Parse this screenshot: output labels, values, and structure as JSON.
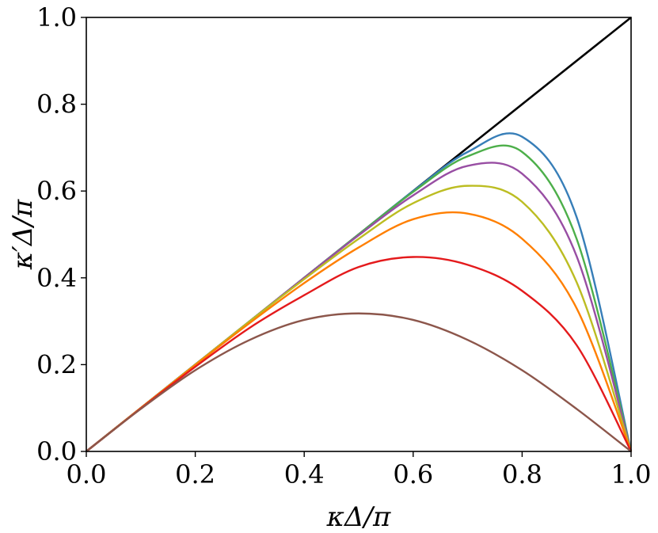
{
  "chart_data": {
    "type": "line",
    "xlabel": "κΔ/π",
    "ylabel": "κ′Δ/π",
    "xlim": [
      0,
      1
    ],
    "ylim": [
      0,
      1
    ],
    "x_ticks": [
      "0.0",
      "0.2",
      "0.4",
      "0.6",
      "0.8",
      "1.0"
    ],
    "y_ticks": [
      "0.0",
      "0.2",
      "0.4",
      "0.6",
      "0.8",
      "1.0"
    ],
    "grid": false,
    "legend": "none",
    "x": [
      0.0,
      0.1,
      0.2,
      0.3,
      0.4,
      0.5,
      0.6,
      0.7,
      0.8,
      0.9,
      1.0
    ],
    "series": [
      {
        "color": "#000000",
        "values": [
          0.0,
          0.1,
          0.2,
          0.3,
          0.4,
          0.5,
          0.6,
          0.7,
          0.8,
          0.9,
          1.0
        ]
      },
      {
        "color": "#377eb8",
        "values": [
          0.0,
          0.1,
          0.2,
          0.3,
          0.4,
          0.5,
          0.6,
          0.69,
          0.725,
          0.54,
          0.0
        ]
      },
      {
        "color": "#4daf4a",
        "values": [
          0.0,
          0.1,
          0.2,
          0.3,
          0.4,
          0.5,
          0.598,
          0.68,
          0.69,
          0.49,
          0.0
        ]
      },
      {
        "color": "#984ea3",
        "values": [
          0.0,
          0.1,
          0.2,
          0.3,
          0.4,
          0.498,
          0.59,
          0.658,
          0.64,
          0.45,
          0.0
        ]
      },
      {
        "color": "#bcbd22",
        "values": [
          0.0,
          0.1,
          0.2,
          0.3,
          0.397,
          0.49,
          0.572,
          0.612,
          0.575,
          0.39,
          0.0
        ]
      },
      {
        "color": "#ff7f00",
        "values": [
          0.0,
          0.1,
          0.199,
          0.296,
          0.388,
          0.47,
          0.535,
          0.548,
          0.49,
          0.33,
          0.0
        ]
      },
      {
        "color": "#e41a1c",
        "values": [
          0.0,
          0.099,
          0.195,
          0.285,
          0.36,
          0.425,
          0.448,
          0.43,
          0.37,
          0.245,
          0.0
        ]
      },
      {
        "color": "#8c564b",
        "values": [
          0.0,
          0.098,
          0.187,
          0.257,
          0.303,
          0.318,
          0.303,
          0.257,
          0.187,
          0.098,
          0.0
        ]
      }
    ]
  }
}
